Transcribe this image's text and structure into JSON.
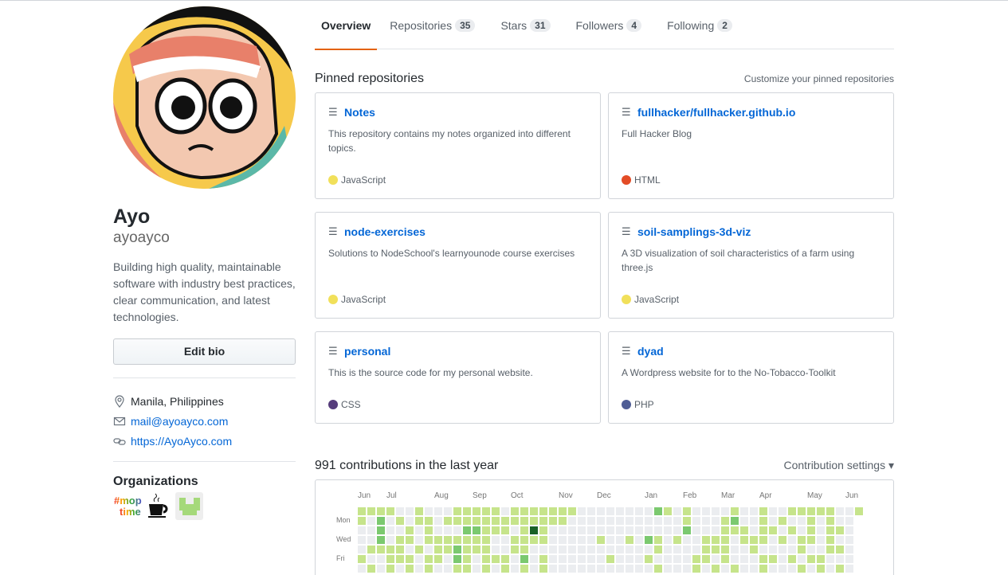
{
  "profile": {
    "name": "Ayo",
    "username": "ayoayco",
    "bio": [
      "Building high quality, maintainable",
      "software with industry best practices,",
      "clear communication, and latest",
      "technologies."
    ],
    "edit_bio": "Edit bio",
    "location": "Manila, Philippines",
    "email": "mail@ayoayco.com",
    "website": "https://AyoAyco.com",
    "organizations_heading": "Organizations",
    "organizations": [
      {
        "icon": "mop-time-logo",
        "logo_text": "#mop time!"
      },
      {
        "icon": "coffee-cup-logo"
      },
      {
        "icon": "green-block-logo"
      }
    ]
  },
  "tabs": [
    {
      "label": "Overview",
      "selected": true
    },
    {
      "label": "Repositories",
      "count": "35"
    },
    {
      "label": "Stars",
      "count": "31"
    },
    {
      "label": "Followers",
      "count": "4"
    },
    {
      "label": "Following",
      "count": "2"
    }
  ],
  "accent": "#e36209",
  "pinned": {
    "heading": "Pinned repositories",
    "customize": "Customize your pinned repositories",
    "repos": [
      {
        "name": "Notes",
        "desc": "This repository contains my notes organized into different topics.",
        "lang": "JavaScript",
        "color": "#f1e05a"
      },
      {
        "name": "fullhacker/fullhacker.github.io",
        "desc": "Full Hacker Blog",
        "lang": "HTML",
        "color": "#e34c26"
      },
      {
        "name": "node-exercises",
        "desc": "Solutions to NodeSchool's learnyounode course exercises",
        "lang": "JavaScript",
        "color": "#f1e05a"
      },
      {
        "name": "soil-samplings-3d-viz",
        "desc": "A 3D visualization of soil characteristics of a farm using three.js",
        "lang": "JavaScript",
        "color": "#f1e05a"
      },
      {
        "name": "personal",
        "desc": "This is the source code for my personal website.",
        "lang": "CSS",
        "color": "#563d7c"
      },
      {
        "name": "dyad",
        "desc": "A Wordpress website for to the No-Tobacco-Toolkit",
        "lang": "PHP",
        "color": "#4F5D95"
      }
    ]
  },
  "contributions": {
    "heading": "991 contributions in the last year",
    "settings": "Contribution settings ▾",
    "months": [
      {
        "label": "Jun",
        "week": 0
      },
      {
        "label": "Jul",
        "week": 3
      },
      {
        "label": "Aug",
        "week": 8
      },
      {
        "label": "Sep",
        "week": 12
      },
      {
        "label": "Oct",
        "week": 16
      },
      {
        "label": "Nov",
        "week": 21
      },
      {
        "label": "Dec",
        "week": 25
      },
      {
        "label": "Jan",
        "week": 30
      },
      {
        "label": "Feb",
        "week": 34
      },
      {
        "label": "Mar",
        "week": 38
      },
      {
        "label": "Apr",
        "week": 42
      },
      {
        "label": "May",
        "week": 47
      },
      {
        "label": "Jun",
        "week": 51
      }
    ],
    "days": [
      {
        "label": "Mon",
        "row": 1
      },
      {
        "label": "Wed",
        "row": 3
      },
      {
        "label": "Fri",
        "row": 5
      }
    ],
    "level_colors": [
      "#ebedf0",
      "#c6e48b",
      "#7bc96f",
      "#239a3b",
      "#196127"
    ],
    "grid": [
      "11110010001111101111111000000002101000010010011111001",
      "1020101101111111111111000000000000100012001010010100",
      "0020010100022111014100000000000000200011101101010110",
      "0020110111111100111100000100102101001110111010110100",
      "0111101011211100110000000000000100001110010000100110",
      "1001110110210111020100000010001000011010001101011000",
      "0101010100110101010100000000000100010101001000101010"
    ]
  }
}
